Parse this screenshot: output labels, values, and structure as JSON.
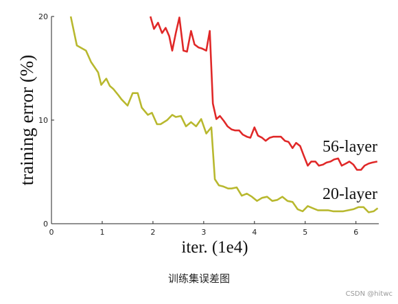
{
  "chart_data": {
    "type": "line",
    "xlabel": "iter. (1e4)",
    "ylabel": "training error (%)",
    "xlim": [
      0,
      6.45
    ],
    "ylim": [
      0,
      20
    ],
    "xticks": [
      0,
      1,
      2,
      3,
      4,
      5,
      6
    ],
    "yticks": [
      0,
      10,
      20
    ],
    "grid": false,
    "series": [
      {
        "name": "56-layer",
        "color": "#e02828",
        "x": [
          1.95,
          2.02,
          2.1,
          2.18,
          2.25,
          2.32,
          2.38,
          2.45,
          2.52,
          2.6,
          2.67,
          2.75,
          2.82,
          2.9,
          2.97,
          3.05,
          3.12,
          3.18,
          3.25,
          3.32,
          3.4,
          3.47,
          3.55,
          3.62,
          3.7,
          3.77,
          3.85,
          3.92,
          4.0,
          4.07,
          4.15,
          4.22,
          4.3,
          4.37,
          4.45,
          4.52,
          4.6,
          4.67,
          4.75,
          4.82,
          4.9,
          4.97,
          5.05,
          5.12,
          5.2,
          5.27,
          5.35,
          5.42,
          5.5,
          5.57,
          5.65,
          5.72,
          5.8,
          5.87,
          5.95,
          6.02,
          6.1,
          6.17,
          6.25,
          6.32,
          6.42
        ],
        "values": [
          20.0,
          18.8,
          19.4,
          18.4,
          18.9,
          18.1,
          16.7,
          18.4,
          19.9,
          16.7,
          16.6,
          18.6,
          17.3,
          17.0,
          16.9,
          16.7,
          18.6,
          11.6,
          10.1,
          10.4,
          9.9,
          9.4,
          9.1,
          9.0,
          9.0,
          8.6,
          8.4,
          8.3,
          9.3,
          8.5,
          8.3,
          8.0,
          8.3,
          8.4,
          8.4,
          8.4,
          8.0,
          7.9,
          7.3,
          7.8,
          7.5,
          6.6,
          5.6,
          6.0,
          6.0,
          5.6,
          5.7,
          5.9,
          6.0,
          6.2,
          6.3,
          5.6,
          5.8,
          6.0,
          5.7,
          5.2,
          5.2,
          5.6,
          5.8,
          5.9,
          6.0
        ]
      },
      {
        "name": "20-layer",
        "color": "#b8b82e",
        "x": [
          0.38,
          0.5,
          0.68,
          0.78,
          0.92,
          0.98,
          1.08,
          1.15,
          1.22,
          1.32,
          1.38,
          1.5,
          1.6,
          1.7,
          1.78,
          1.9,
          1.98,
          2.08,
          2.15,
          2.28,
          2.38,
          2.45,
          2.55,
          2.65,
          2.75,
          2.85,
          2.95,
          3.05,
          3.15,
          3.22,
          3.3,
          3.38,
          3.48,
          3.55,
          3.65,
          3.75,
          3.85,
          3.95,
          4.05,
          4.15,
          4.25,
          4.35,
          4.45,
          4.55,
          4.65,
          4.75,
          4.85,
          4.95,
          5.05,
          5.15,
          5.25,
          5.35,
          5.45,
          5.55,
          5.65,
          5.75,
          5.85,
          5.95,
          6.05,
          6.15,
          6.25,
          6.35,
          6.43
        ],
        "values": [
          20.0,
          17.2,
          16.7,
          15.6,
          14.6,
          13.4,
          14.0,
          13.3,
          13.0,
          12.4,
          12.0,
          11.4,
          12.6,
          12.6,
          11.2,
          10.5,
          10.7,
          9.6,
          9.6,
          10.0,
          10.5,
          10.3,
          10.4,
          9.4,
          9.8,
          9.4,
          10.1,
          8.7,
          9.3,
          4.3,
          3.7,
          3.6,
          3.4,
          3.4,
          3.5,
          2.7,
          2.9,
          2.6,
          2.2,
          2.5,
          2.6,
          2.2,
          2.3,
          2.6,
          2.2,
          2.1,
          1.4,
          1.2,
          1.7,
          1.5,
          1.3,
          1.3,
          1.3,
          1.2,
          1.2,
          1.2,
          1.3,
          1.4,
          1.6,
          1.6,
          1.1,
          1.2,
          1.5
        ]
      }
    ]
  },
  "caption": "训练集误差图",
  "watermark": "CSDN @hitwc"
}
